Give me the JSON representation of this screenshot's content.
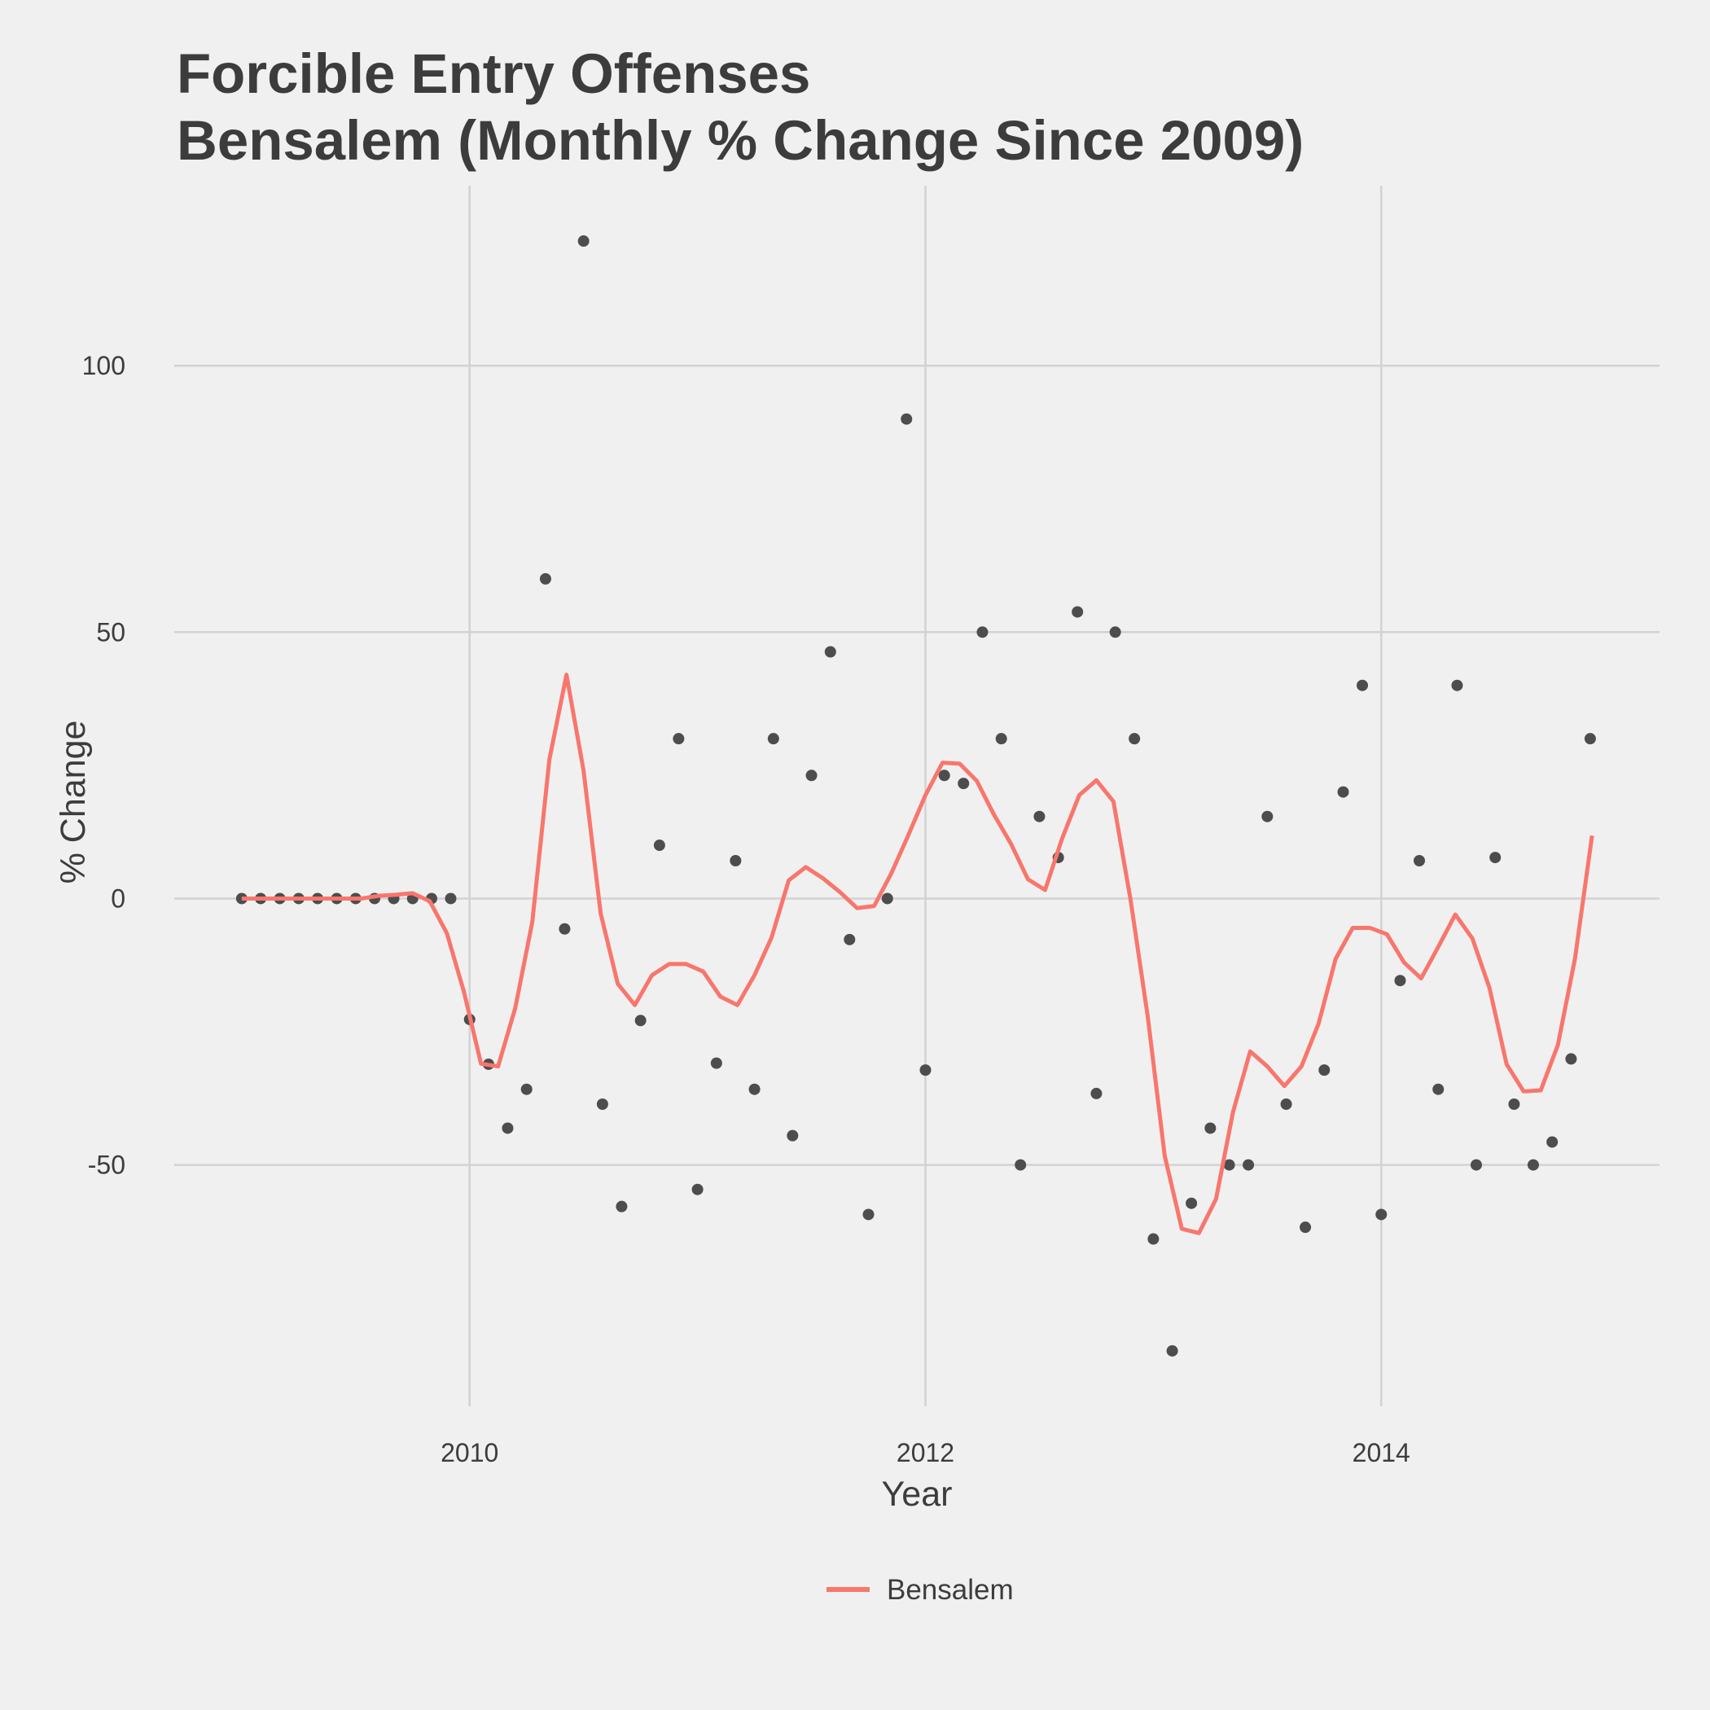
{
  "chart_data": {
    "type": "scatter",
    "title": [
      "Forcible Entry Offenses",
      "Bensalem (Monthly % Change Since 2009)"
    ],
    "x_label": "Year",
    "y_label": "% Change",
    "xlim": [
      2008.704,
      2015.221
    ],
    "ylim": [
      -95.3,
      133.8
    ],
    "xticks": [
      2010,
      2012,
      2014
    ],
    "yticks": [
      -50,
      0,
      50,
      100
    ],
    "grid": true,
    "legend_position": "bottom",
    "series": [
      {
        "type": "point",
        "color": "#4d4d4d",
        "x": [
          2009,
          2009.083,
          2009.167,
          2009.25,
          2009.333,
          2009.417,
          2009.5,
          2009.583,
          2009.667,
          2009.75,
          2009.833,
          2009.917,
          2010,
          2010.083,
          2010.167,
          2010.25,
          2010.333,
          2010.417,
          2010.5,
          2010.583,
          2010.667,
          2010.75,
          2010.833,
          2010.917,
          2011,
          2011.083,
          2011.167,
          2011.25,
          2011.333,
          2011.417,
          2011.5,
          2011.583,
          2011.667,
          2011.75,
          2011.833,
          2011.917,
          2012,
          2012.083,
          2012.167,
          2012.25,
          2012.333,
          2012.417,
          2012.5,
          2012.583,
          2012.667,
          2012.75,
          2012.833,
          2012.917,
          2013,
          2013.083,
          2013.167,
          2013.25,
          2013.333,
          2013.417,
          2013.5,
          2013.583,
          2013.667,
          2013.75,
          2013.833,
          2013.917,
          2014,
          2014.083,
          2014.167,
          2014.25,
          2014.333,
          2014.417,
          2014.5,
          2014.583,
          2014.667,
          2014.75,
          2014.833,
          2014.917
        ],
        "values": [
          0,
          0,
          0,
          0,
          0,
          0,
          0,
          0,
          0,
          0,
          0,
          0,
          -22.7,
          -31.1,
          -43.1,
          -35.8,
          60,
          -5.7,
          123.4,
          -38.6,
          -57.8,
          -22.9,
          10,
          30,
          -54.6,
          -30.9,
          7.1,
          -35.8,
          30,
          -44.5,
          23.1,
          46.3,
          -7.7,
          -59.3,
          0,
          90,
          -32.2,
          23.1,
          21.6,
          50,
          30,
          -50,
          15.4,
          7.7,
          53.8,
          -36.6,
          50,
          30,
          -63.9,
          -84.9,
          -57.2,
          -43.1,
          -50,
          -50,
          15.4,
          -38.6,
          -61.7,
          -32.2,
          20,
          40,
          -59.3,
          -15.4,
          7.1,
          -35.8,
          40,
          -50,
          7.7,
          -38.6,
          -50,
          -45.7,
          -30.1,
          30
        ]
      },
      {
        "name": "Bensalem",
        "type": "line",
        "color": "#f8766d",
        "x": [
          2009,
          2009.075,
          2009.15,
          2009.225,
          2009.3,
          2009.375,
          2009.45,
          2009.525,
          2009.6,
          2009.675,
          2009.75,
          2009.825,
          2009.9,
          2009.975,
          2010.05,
          2010.125,
          2010.2,
          2010.275,
          2010.35,
          2010.425,
          2010.5,
          2010.575,
          2010.65,
          2010.725,
          2010.8,
          2010.875,
          2010.95,
          2011.025,
          2011.1,
          2011.175,
          2011.25,
          2011.325,
          2011.4,
          2011.475,
          2011.55,
          2011.625,
          2011.7,
          2011.775,
          2011.85,
          2011.925,
          2012,
          2012.075,
          2012.15,
          2012.225,
          2012.3,
          2012.375,
          2012.45,
          2012.525,
          2012.6,
          2012.675,
          2012.75,
          2012.825,
          2012.9,
          2012.975,
          2013.05,
          2013.125,
          2013.2,
          2013.275,
          2013.35,
          2013.425,
          2013.5,
          2013.575,
          2013.65,
          2013.725,
          2013.8,
          2013.875,
          2013.95,
          2014.025,
          2014.1,
          2014.175,
          2014.25,
          2014.325,
          2014.4,
          2014.475,
          2014.55,
          2014.625,
          2014.7,
          2014.775,
          2014.85,
          2014.925
        ],
        "values": [
          0,
          0,
          0,
          0,
          0,
          0,
          0,
          0,
          0.5,
          0.7,
          1,
          -0.5,
          -6.5,
          -17.5,
          -31,
          -31.5,
          -20.6,
          -4.4,
          26.1,
          42,
          24,
          -2.8,
          -16,
          -20,
          -14.4,
          -12.3,
          -12.3,
          -13.7,
          -18.4,
          -20,
          -14.4,
          -7.3,
          3.4,
          5.9,
          3.8,
          1.2,
          -1.8,
          -1.4,
          4.7,
          11.9,
          19.4,
          25.5,
          25.3,
          22.1,
          15.8,
          10.3,
          3.6,
          1.6,
          11.3,
          19.4,
          22.2,
          18.2,
          -0.2,
          -22,
          -48.3,
          -62,
          -62.8,
          -56.4,
          -40,
          -28.7,
          -31.5,
          -35.2,
          -31.5,
          -23.5,
          -11.3,
          -5.5,
          -5.5,
          -6.7,
          -12,
          -15,
          -9.1,
          -3,
          -7.5,
          -16.8,
          -31.1,
          -36.2,
          -36,
          -27.5,
          -11.3,
          11.8
        ]
      }
    ]
  }
}
